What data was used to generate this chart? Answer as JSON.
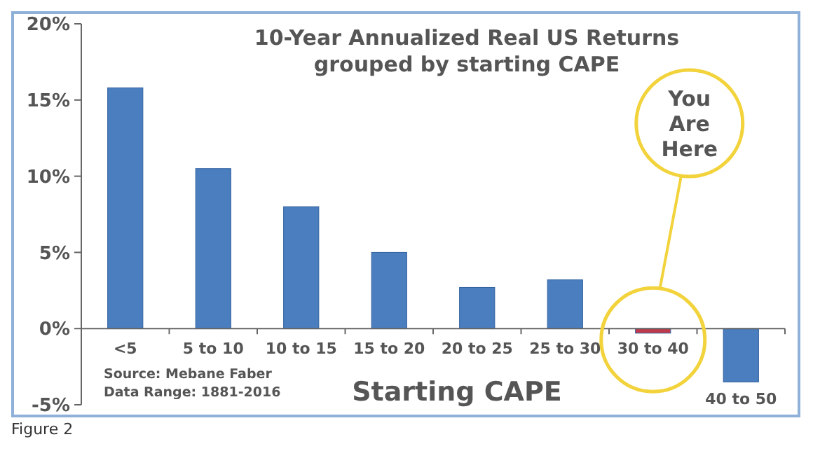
{
  "chart_data": {
    "type": "bar",
    "title": "10-Year Annualized Real US Returns\ngrouped by starting CAPE",
    "xlabel": "Starting CAPE",
    "categories": [
      "<5",
      "5 to 10",
      "10 to 15",
      "15 to 20",
      "20 to 25",
      "25 to 30",
      "30 to 40",
      "40 to 50"
    ],
    "values": [
      15.8,
      10.5,
      8.0,
      5.0,
      2.7,
      3.2,
      -0.3,
      -3.5
    ],
    "colors": [
      "#4a7ebf",
      "#4a7ebf",
      "#4a7ebf",
      "#4a7ebf",
      "#4a7ebf",
      "#4a7ebf",
      "#c0394b",
      "#4a7ebf"
    ],
    "ylim": [
      -5,
      20
    ],
    "yticks": [
      {
        "value": -5,
        "label": "-5%"
      },
      {
        "value": 0,
        "label": "0%"
      },
      {
        "value": 5,
        "label": "5%"
      },
      {
        "value": 10,
        "label": "10%"
      },
      {
        "value": 15,
        "label": "15%"
      },
      {
        "value": 20,
        "label": "20%"
      }
    ],
    "grid": false,
    "annotations": [
      "You Are Here",
      "Source: Mebane Faber",
      "Data Range: 1881-2016",
      "Figure 2"
    ]
  }
}
